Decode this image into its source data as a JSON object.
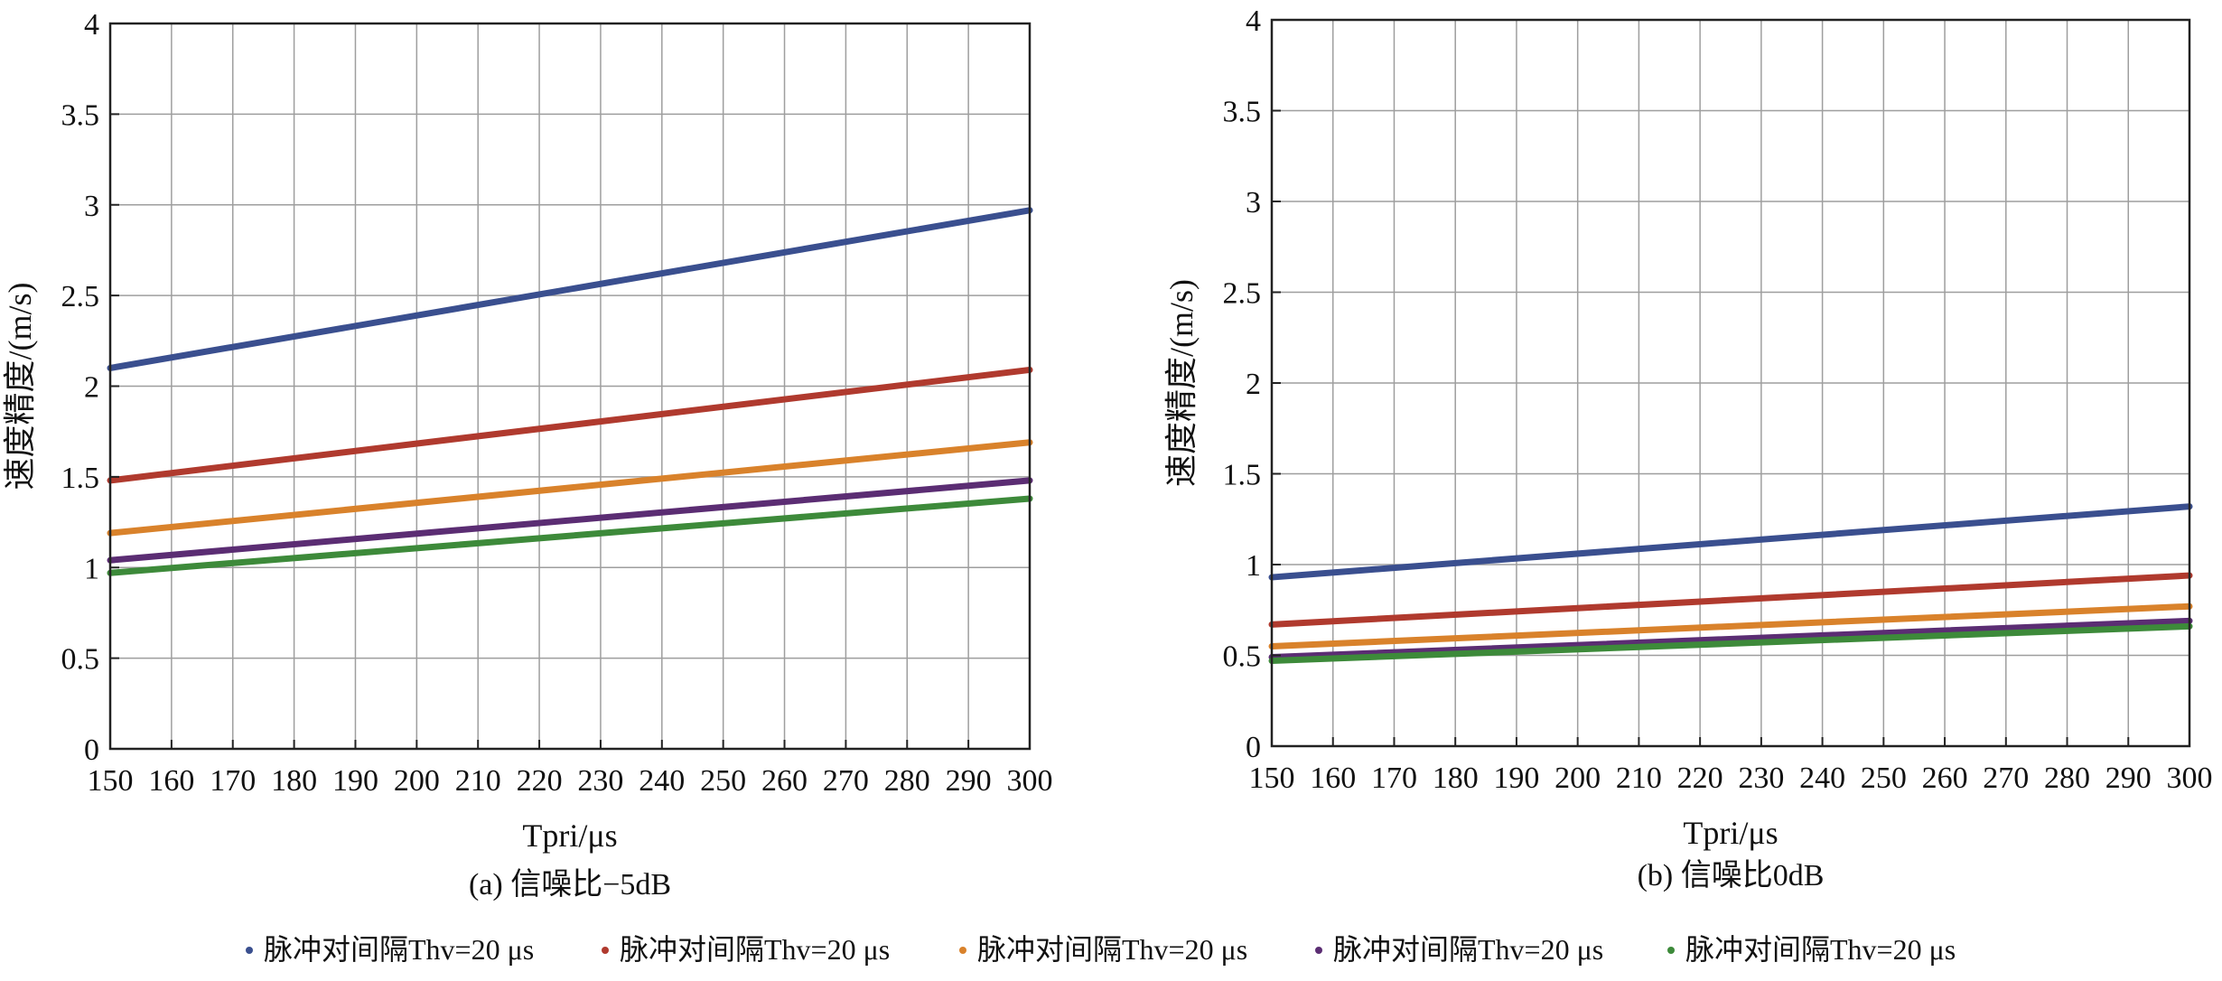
{
  "legend": [
    {
      "label": "脉冲对间隔Thv=20 μs",
      "color": "#3a4f8f"
    },
    {
      "label": "脉冲对间隔Thv=20 μs",
      "color": "#b03a2e"
    },
    {
      "label": "脉冲对间隔Thv=20 μs",
      "color": "#d9822b"
    },
    {
      "label": "脉冲对间隔Thv=20 μs",
      "color": "#5b2d73"
    },
    {
      "label": "脉冲对间隔Thv=20 μs",
      "color": "#3d8a3a"
    }
  ],
  "chart_data": [
    {
      "type": "line",
      "caption": "(a) 信噪比−5dB",
      "xlabel": "Tpri/μs",
      "ylabel": "速度精度/(m/s)",
      "xlim": [
        150,
        300
      ],
      "ylim": [
        0,
        4
      ],
      "xticks": [
        150,
        160,
        170,
        180,
        190,
        200,
        210,
        220,
        230,
        240,
        250,
        260,
        270,
        280,
        290,
        300
      ],
      "yticks": [
        "0",
        "0.5",
        "1",
        "1.5",
        "2",
        "2.5",
        "3",
        "3.5",
        "4"
      ],
      "grid": true,
      "x": [
        150,
        300
      ],
      "series": [
        {
          "color": "#3a4f8f",
          "values": [
            2.1,
            2.97
          ]
        },
        {
          "color": "#b03a2e",
          "values": [
            1.48,
            2.09
          ]
        },
        {
          "color": "#d9822b",
          "values": [
            1.19,
            1.69
          ]
        },
        {
          "color": "#5b2d73",
          "values": [
            1.04,
            1.48
          ]
        },
        {
          "color": "#3d8a3a",
          "values": [
            0.97,
            1.38
          ]
        }
      ]
    },
    {
      "type": "line",
      "caption": "(b) 信噪比0dB",
      "xlabel": "Tpri/μs",
      "ylabel": "速度精度/(m/s)",
      "xlim": [
        150,
        300
      ],
      "ylim": [
        0,
        4
      ],
      "xticks": [
        150,
        160,
        170,
        180,
        190,
        200,
        210,
        220,
        230,
        240,
        250,
        260,
        270,
        280,
        290,
        300
      ],
      "yticks": [
        "0",
        "0.5",
        "1",
        "1.5",
        "2",
        "2.5",
        "3",
        "3.5",
        "4"
      ],
      "grid": true,
      "x": [
        150,
        300
      ],
      "series": [
        {
          "color": "#3a4f8f",
          "values": [
            0.93,
            1.32
          ]
        },
        {
          "color": "#b03a2e",
          "values": [
            0.67,
            0.94
          ]
        },
        {
          "color": "#d9822b",
          "values": [
            0.55,
            0.77
          ]
        },
        {
          "color": "#5b2d73",
          "values": [
            0.49,
            0.69
          ]
        },
        {
          "color": "#3d8a3a",
          "values": [
            0.47,
            0.66
          ]
        }
      ]
    }
  ]
}
